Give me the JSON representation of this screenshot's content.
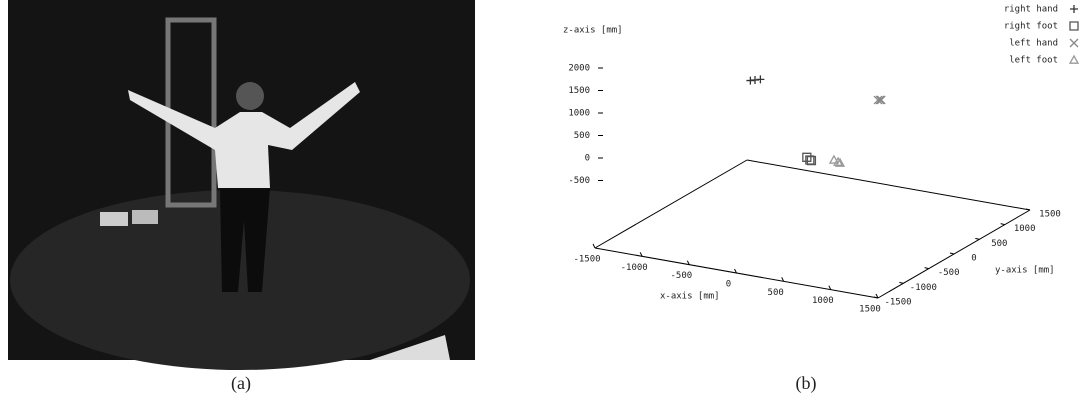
{
  "captions": [
    "(a)",
    "(b)"
  ],
  "chart_data": {
    "type": "scatter3d",
    "xlabel": "x-axis [mm]",
    "ylabel": "y-axis [mm]",
    "zlabel": "z-axis [mm]",
    "xlim": [
      -1500,
      1500
    ],
    "ylim": [
      -1500,
      1500
    ],
    "zlim": [
      -2000,
      2000
    ],
    "xticks": [
      -1500,
      -1000,
      -500,
      0,
      500,
      1000,
      1500
    ],
    "yticks": [
      -1500,
      -1000,
      -500,
      0,
      500,
      1000,
      1500
    ],
    "zticks": [
      -500,
      0,
      500,
      1000,
      1500,
      2000
    ],
    "legend": "top right",
    "series": [
      {
        "name": "right hand",
        "marker": "plus",
        "color": "#333333",
        "x": [
          -348,
          -300,
          -390
        ],
        "y": [
          -487,
          -470,
          -500
        ],
        "z": [
          1500,
          1520,
          1480
        ]
      },
      {
        "name": "right foot",
        "marker": "square",
        "color": "#555555",
        "x": [
          273,
          230,
          300
        ],
        "y": [
          -561,
          -540,
          -580
        ],
        "z": [
          0,
          30,
          10
        ]
      },
      {
        "name": "left hand",
        "marker": "cross",
        "color": "#888888",
        "x": [
          948,
          920,
          970
        ],
        "y": [
          -432,
          -420,
          -450
        ],
        "z": [
          1500,
          1480,
          1520
        ]
      },
      {
        "name": "left foot",
        "marker": "triangle",
        "color": "#999999",
        "x": [
          531,
          480,
          560
        ],
        "y": [
          -483,
          -470,
          -500
        ],
        "z": [
          0,
          20,
          0
        ]
      }
    ]
  }
}
